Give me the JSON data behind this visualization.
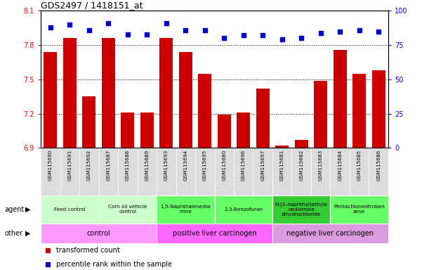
{
  "title": "GDS2497 / 1418151_at",
  "samples": [
    "GSM115690",
    "GSM115691",
    "GSM115692",
    "GSM115687",
    "GSM115688",
    "GSM115689",
    "GSM115693",
    "GSM115694",
    "GSM115695",
    "GSM115680",
    "GSM115696",
    "GSM115697",
    "GSM115681",
    "GSM115682",
    "GSM115683",
    "GSM115684",
    "GSM115685",
    "GSM115686"
  ],
  "transformed_counts": [
    7.74,
    7.86,
    7.35,
    7.86,
    7.21,
    7.21,
    7.86,
    7.74,
    7.55,
    7.19,
    7.21,
    7.42,
    6.92,
    6.97,
    7.49,
    7.76,
    7.55,
    7.58
  ],
  "percentile_ranks": [
    88,
    90,
    86,
    91,
    83,
    83,
    91,
    86,
    86,
    80,
    82,
    82,
    79,
    80,
    84,
    85,
    86,
    85
  ],
  "ylim_left": [
    6.9,
    8.1
  ],
  "ylim_right": [
    0,
    100
  ],
  "yticks_left": [
    6.9,
    7.2,
    7.5,
    7.8,
    8.1
  ],
  "yticks_right": [
    0,
    25,
    50,
    75,
    100
  ],
  "bar_color": "#cc0000",
  "dot_color": "#0000cc",
  "agent_groups": [
    {
      "label": "Feed control",
      "start": 0,
      "end": 3,
      "color": "#ccffcc"
    },
    {
      "label": "Corn oil vehicle\ncontrol",
      "start": 3,
      "end": 6,
      "color": "#ccffcc"
    },
    {
      "label": "1,5-Naphthalenedia\nmine",
      "start": 6,
      "end": 9,
      "color": "#66ff66"
    },
    {
      "label": "2,3-Benzofuran",
      "start": 9,
      "end": 12,
      "color": "#66ff66"
    },
    {
      "label": "N-(1-naphthyl)ethyle\nnediamine\ndihydrochloride",
      "start": 12,
      "end": 15,
      "color": "#33cc33"
    },
    {
      "label": "Pentachloronitroben\nzene",
      "start": 15,
      "end": 18,
      "color": "#66ff66"
    }
  ],
  "other_groups": [
    {
      "label": "control",
      "start": 0,
      "end": 6,
      "color": "#ff99ff"
    },
    {
      "label": "positive liver carcinogen",
      "start": 6,
      "end": 12,
      "color": "#ff66ff"
    },
    {
      "label": "negative liver carcinogen",
      "start": 12,
      "end": 18,
      "color": "#dd99dd"
    }
  ],
  "legend_items": [
    {
      "label": "transformed count",
      "color": "#cc0000"
    },
    {
      "label": "percentile rank within the sample",
      "color": "#0000cc"
    }
  ],
  "hlines": [
    7.2,
    7.5,
    7.8
  ],
  "bar_baseline": 6.9
}
